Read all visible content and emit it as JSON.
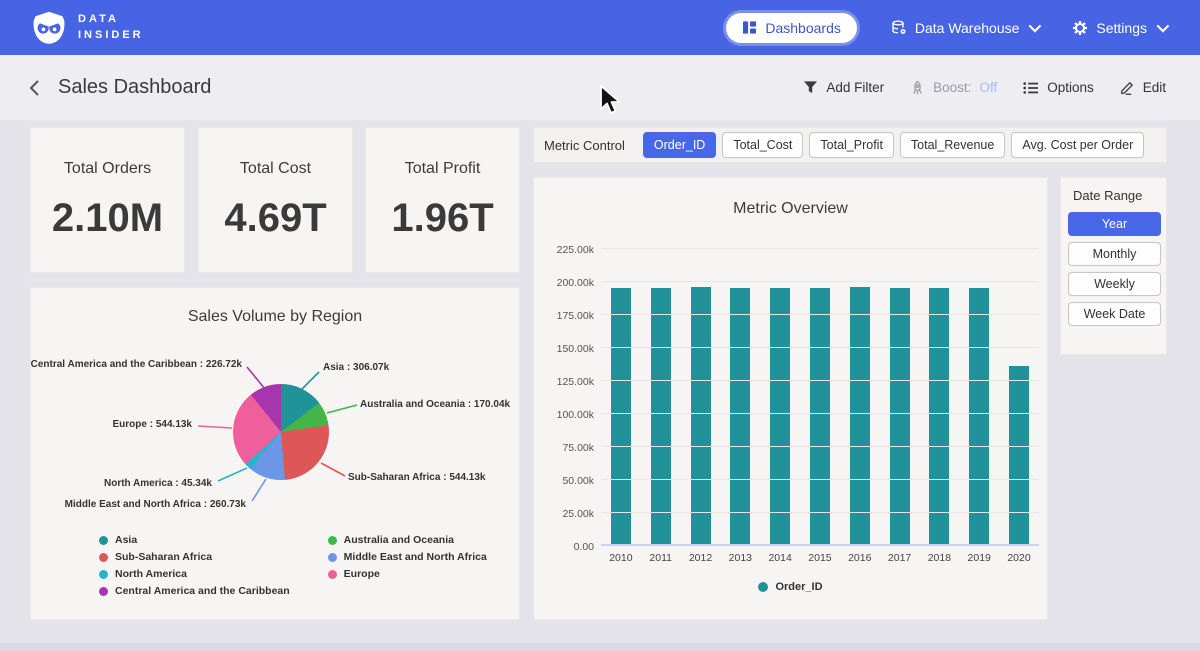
{
  "brand": {
    "line1": "DATA",
    "line2": "INSIDER"
  },
  "navbar": {
    "dashboards": "Dashboards",
    "data_warehouse": "Data Warehouse",
    "settings": "Settings"
  },
  "header": {
    "title": "Sales Dashboard",
    "add_filter": "Add Filter",
    "boost_label": "Boost:",
    "boost_value": "Off",
    "options": "Options",
    "edit": "Edit"
  },
  "kpis": [
    {
      "label": "Total Orders",
      "value": "2.10M"
    },
    {
      "label": "Total Cost",
      "value": "4.69T"
    },
    {
      "label": "Total Profit",
      "value": "1.96T"
    }
  ],
  "metric_control": {
    "label": "Metric Control",
    "buttons": [
      {
        "label": "Order_ID",
        "active": true
      },
      {
        "label": "Total_Cost",
        "active": false
      },
      {
        "label": "Total_Profit",
        "active": false
      },
      {
        "label": "Total_Revenue",
        "active": false
      },
      {
        "label": "Avg. Cost per Order",
        "active": false
      }
    ]
  },
  "date_range": {
    "label": "Date Range",
    "buttons": [
      {
        "label": "Year",
        "active": true
      },
      {
        "label": "Monthly",
        "active": false
      },
      {
        "label": "Weekly",
        "active": false
      },
      {
        "label": "Week Date",
        "active": false
      }
    ]
  },
  "colors": {
    "navbar_blue": "#4664e4",
    "accent_blue": "#4767e8",
    "bar_teal": "#21929a",
    "boost_off": "#a9baf0"
  },
  "chart_data": [
    {
      "type": "bar",
      "title": "Metric Overview",
      "categories": [
        "2010",
        "2011",
        "2012",
        "2013",
        "2014",
        "2015",
        "2016",
        "2017",
        "2018",
        "2019",
        "2020"
      ],
      "series": [
        {
          "name": "Order_ID",
          "values": [
            195.6,
            195.6,
            196.6,
            195.6,
            195.5,
            195.6,
            196.6,
            195.7,
            195.6,
            195.6,
            136.5
          ]
        }
      ],
      "unit": "k",
      "ylim": [
        0,
        225
      ],
      "ytick_values": [
        0,
        25,
        50,
        75,
        100,
        125,
        150,
        175,
        200,
        225
      ],
      "ytick_labels": [
        "0.00",
        "25.00k",
        "50.00k",
        "75.00k",
        "100.00k",
        "125.00k",
        "150.00k",
        "175.00k",
        "200.00k",
        "225.00k"
      ],
      "bar_color": "#21929a",
      "grid": true,
      "legend_position": "bottom",
      "legend": [
        {
          "label": "Order_ID",
          "color": "#21929a"
        }
      ]
    },
    {
      "type": "pie",
      "title": "Sales Volume by Region",
      "slices": [
        {
          "name": "Asia",
          "value": 306.07,
          "callout": "Asia : 306.07k",
          "color": "#1f9398"
        },
        {
          "name": "Australia and Oceania",
          "value": 170.04,
          "callout": "Australia and Oceania : 170.04k",
          "color": "#44b549"
        },
        {
          "name": "Sub-Saharan Africa",
          "value": 544.13,
          "callout": "Sub-Saharan Africa : 544.13k",
          "color": "#dd5757"
        },
        {
          "name": "Middle East and North Africa",
          "value": 260.73,
          "callout": "Middle East and North Africa : 260.73k",
          "color": "#6b97e6"
        },
        {
          "name": "North America",
          "value": 45.34,
          "callout": "North America : 45.34k",
          "color": "#27b6c9"
        },
        {
          "name": "Europe",
          "value": 544.13,
          "callout": "Europe : 544.13k",
          "color": "#ef5f9b"
        },
        {
          "name": "Central America and the Caribbean",
          "value": 226.72,
          "callout": "Central America and the Caribbean : 226.72k",
          "color": "#a736ae"
        }
      ],
      "unit": "k",
      "legend_position": "bottom"
    }
  ]
}
